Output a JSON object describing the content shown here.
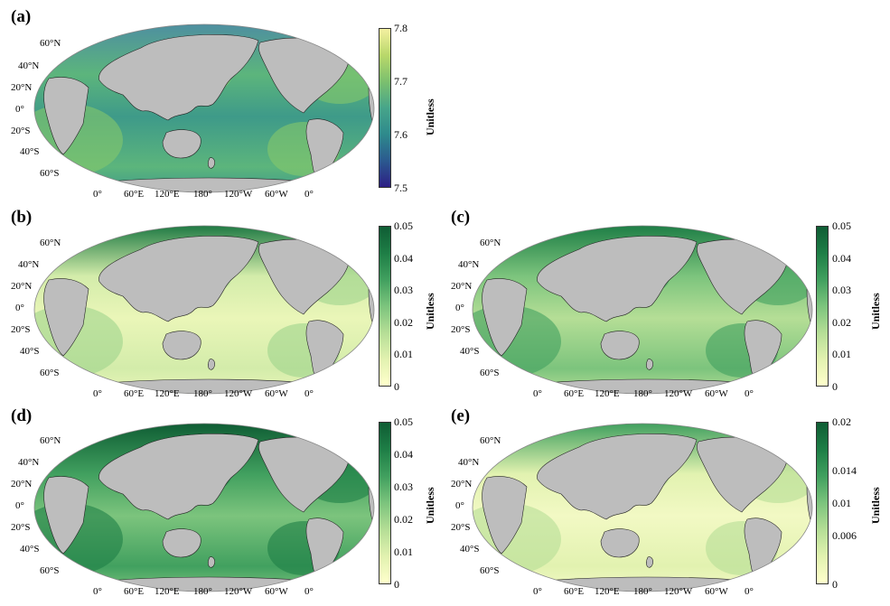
{
  "units": "Unitless",
  "lat_labels": [
    "60°N",
    "40°N",
    "20°N",
    "0°",
    "20°S",
    "40°S",
    "60°S"
  ],
  "lon_labels": [
    "0°",
    "60°E",
    "120°E",
    "180°",
    "120°W",
    "60°W",
    "0°"
  ],
  "colormaps": {
    "viridisish": [
      "#2c1e85",
      "#2b5a8f",
      "#2e8a8c",
      "#47a58a",
      "#7cc06e",
      "#b9d86a",
      "#f4f0a0"
    ],
    "greens": [
      "#ffffcc",
      "#e2f2b0",
      "#b5de96",
      "#7cc47d",
      "#41a05f",
      "#1e7e46",
      "#0f5d34"
    ]
  },
  "panels": [
    {
      "id": "a",
      "label": "(a)",
      "cmap": "viridisish",
      "ticks": [
        "7.8",
        "7.7",
        "7.6",
        "7.5"
      ]
    },
    {
      "id": "b",
      "label": "(b)",
      "cmap": "greens",
      "ticks": [
        "0.05",
        "0.04",
        "0.03",
        "0.02",
        "0.01",
        "0"
      ]
    },
    {
      "id": "c",
      "label": "(c)",
      "cmap": "greens",
      "ticks": [
        "0.05",
        "0.04",
        "0.03",
        "0.02",
        "0.01",
        "0"
      ]
    },
    {
      "id": "d",
      "label": "(d)",
      "cmap": "greens",
      "ticks": [
        "0.05",
        "0.04",
        "0.03",
        "0.02",
        "0.01",
        "0"
      ]
    },
    {
      "id": "e",
      "label": "(e)",
      "cmap": "greens",
      "ticks": [
        "0.02",
        "0.014",
        "0.01",
        "0.006",
        "0"
      ]
    }
  ]
}
